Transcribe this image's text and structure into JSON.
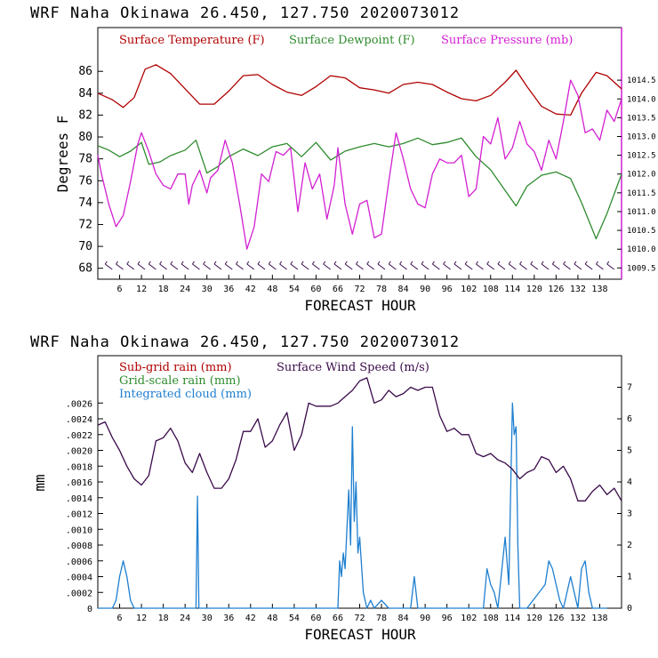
{
  "chart_data": [
    {
      "type": "line",
      "title": "WRF   Naha Okinawa   26.450, 127.750   2020073012",
      "xlabel": "FORECAST HOUR",
      "ylabel": "Degrees F",
      "xlim": [
        0,
        144
      ],
      "xticks": [
        "6",
        "12",
        "18",
        "24",
        "30",
        "36",
        "42",
        "48",
        "54",
        "60",
        "66",
        "72",
        "78",
        "84",
        "90",
        "96",
        "102",
        "108",
        "114",
        "120",
        "126",
        "132",
        "138"
      ],
      "ylim": [
        67,
        90
      ],
      "yticks": [
        "68",
        "70",
        "72",
        "74",
        "76",
        "78",
        "80",
        "82",
        "84",
        "86"
      ],
      "y2lim": [
        1009.2,
        1015.9
      ],
      "y2ticks": [
        "1009.5",
        "1010.0",
        "1010.5",
        "1011.0",
        "1011.5",
        "1012.0",
        "1012.5",
        "1013.0",
        "1013.5",
        "1014.0",
        "1014.5"
      ],
      "series": [
        {
          "name": "Surface Temperature (F)",
          "color": "#b00000",
          "axis": "left",
          "x": [
            0,
            4,
            7,
            10,
            13,
            16,
            20,
            24,
            28,
            32,
            36,
            40,
            44,
            48,
            52,
            56,
            60,
            64,
            68,
            72,
            76,
            80,
            84,
            88,
            92,
            96,
            100,
            104,
            108,
            112,
            115,
            118,
            122,
            126,
            130,
            133,
            137,
            140,
            144
          ],
          "y": [
            84.0,
            83.4,
            82.7,
            83.6,
            86.2,
            86.6,
            85.8,
            84.4,
            83.0,
            83.0,
            84.2,
            85.6,
            85.7,
            84.8,
            84.1,
            83.8,
            84.6,
            85.6,
            85.4,
            84.5,
            84.3,
            84.0,
            84.8,
            85.0,
            84.8,
            84.1,
            83.5,
            83.3,
            83.8,
            85.0,
            86.1,
            84.6,
            82.8,
            82.1,
            82.0,
            84.0,
            85.9,
            85.6,
            84.4
          ]
        },
        {
          "name": "Surface Dewpoint (F)",
          "color": "#2e8b2e",
          "axis": "left",
          "x": [
            0,
            3,
            6,
            9,
            12,
            14,
            17,
            20,
            24,
            27,
            30,
            33,
            36,
            40,
            44,
            48,
            52,
            56,
            60,
            64,
            68,
            72,
            76,
            80,
            84,
            88,
            92,
            96,
            100,
            104,
            108,
            112,
            115,
            118,
            122,
            126,
            130,
            133,
            137,
            140,
            144
          ],
          "y": [
            79.2,
            78.8,
            78.2,
            78.7,
            79.5,
            77.5,
            77.7,
            78.3,
            78.8,
            79.7,
            76.7,
            77.3,
            78.2,
            78.9,
            78.3,
            79.1,
            79.4,
            78.2,
            79.5,
            77.9,
            78.7,
            79.1,
            79.4,
            79.1,
            79.4,
            79.9,
            79.3,
            79.5,
            79.9,
            78.2,
            77.0,
            75.1,
            73.7,
            75.5,
            76.5,
            76.8,
            76.2,
            74.0,
            70.7,
            73.0,
            76.6
          ]
        },
        {
          "name": "Surface Pressure (mb)",
          "color": "#d21fd2",
          "axis": "right",
          "x": [
            0,
            1,
            3,
            5,
            7,
            9,
            11,
            12,
            14,
            16,
            18,
            20,
            22,
            24,
            25,
            26,
            28,
            30,
            31,
            33,
            35,
            37,
            39,
            41,
            43,
            45,
            47,
            49,
            51,
            53,
            55,
            57,
            59,
            61,
            63,
            65,
            66,
            68,
            70,
            72,
            74,
            76,
            78,
            80,
            82,
            84,
            86,
            88,
            90,
            92,
            94,
            96,
            98,
            100,
            102,
            104,
            106,
            108,
            110,
            112,
            114,
            116,
            118,
            120,
            122,
            124,
            126,
            128,
            130,
            132,
            134,
            136,
            138,
            140,
            142,
            144
          ],
          "y": [
            1012.5,
            1012.0,
            1011.2,
            1010.6,
            1010.9,
            1011.8,
            1012.8,
            1013.1,
            1012.6,
            1012.0,
            1011.7,
            1011.6,
            1012.0,
            1012.0,
            1011.2,
            1011.7,
            1012.1,
            1011.5,
            1011.9,
            1012.1,
            1012.9,
            1012.3,
            1011.2,
            1010.0,
            1010.6,
            1012.0,
            1011.8,
            1012.6,
            1012.5,
            1012.7,
            1011.0,
            1012.3,
            1011.6,
            1012.0,
            1010.8,
            1011.7,
            1012.7,
            1011.2,
            1010.4,
            1011.2,
            1011.3,
            1010.3,
            1010.4,
            1011.8,
            1013.1,
            1012.4,
            1011.6,
            1011.2,
            1011.1,
            1012.0,
            1012.4,
            1012.3,
            1012.3,
            1012.5,
            1011.4,
            1011.6,
            1013.0,
            1012.8,
            1013.5,
            1012.4,
            1012.7,
            1013.4,
            1012.8,
            1012.6,
            1012.1,
            1012.9,
            1012.4,
            1013.4,
            1014.5,
            1014.1,
            1013.1,
            1013.2,
            1012.9,
            1013.7,
            1013.4,
            1014.0
          ]
        }
      ],
      "wind_barbs": true
    },
    {
      "type": "line",
      "title": "WRF   Naha Okinawa   26.450, 127.750   2020073012",
      "xlabel": "FORECAST HOUR",
      "ylabel": "mm",
      "xlim": [
        0,
        144
      ],
      "xticks": [
        "6",
        "12",
        "18",
        "24",
        "30",
        "36",
        "42",
        "48",
        "54",
        "60",
        "66",
        "72",
        "78",
        "84",
        "90",
        "96",
        "102",
        "108",
        "114",
        "120",
        "126",
        "132",
        "138"
      ],
      "ylim": [
        0,
        0.0032
      ],
      "yticks": [
        "0",
        ".0002",
        ".0004",
        ".0006",
        ".0008",
        ".0010",
        ".0012",
        ".0014",
        ".0016",
        ".0018",
        ".0020",
        ".0022",
        ".0024",
        ".0026"
      ],
      "y2lim": [
        0,
        8
      ],
      "y2ticks": [
        "0",
        "1",
        "2",
        "3",
        "4",
        "5",
        "6",
        "7"
      ],
      "series": [
        {
          "name": "Sub-grid rain (mm)",
          "color": "#b00000",
          "axis": "left",
          "x": [],
          "y": []
        },
        {
          "name": "Grid-scale rain (mm)",
          "color": "#2e8b2e",
          "axis": "left",
          "x": [],
          "y": []
        },
        {
          "name": "Integrated cloud (mm)",
          "color": "#1e7fd0",
          "axis": "left",
          "x": [
            0,
            4,
            5,
            6,
            7,
            8,
            9,
            10,
            26,
            27,
            27.4,
            27.8,
            28,
            66,
            66.5,
            67,
            67.5,
            68,
            69,
            69.5,
            70,
            70.5,
            71,
            71.5,
            72,
            73,
            73.5,
            74,
            75,
            76,
            78,
            80,
            82,
            86,
            87,
            88,
            106,
            107,
            108,
            109,
            110,
            112,
            113,
            114,
            114.5,
            115,
            115.5,
            116,
            117,
            118,
            123,
            124,
            125,
            126,
            127,
            128,
            130,
            131,
            132,
            133,
            134,
            135,
            136,
            137,
            138,
            140
          ],
          "y": [
            0,
            0,
            0.0001,
            0.0004,
            0.0006,
            0.0004,
            0.0001,
            0,
            0,
            0,
            0.00142,
            0,
            0,
            0,
            0.0006,
            0.0004,
            0.0007,
            0.0005,
            0.0015,
            0.0008,
            0.0023,
            0.0011,
            0.0016,
            0.0007,
            0.0009,
            0.0002,
            0.0001,
            0,
            0.0001,
            0,
            0.0001,
            0,
            0,
            0,
            0.0004,
            0,
            0,
            0.0005,
            0.0003,
            0.0002,
            0,
            0.0009,
            0.0003,
            0.0026,
            0.0022,
            0.0023,
            0.0008,
            0,
            0,
            0,
            0.0003,
            0.0006,
            0.0005,
            0.0003,
            0.0001,
            0,
            0.0004,
            0.0002,
            0,
            0.0005,
            0.0006,
            0.0002,
            0,
            0,
            0,
            0
          ]
        },
        {
          "name": "Surface Wind Speed (m/s)",
          "color": "#3a0a4a",
          "axis": "right",
          "x": [
            0,
            2,
            4,
            6,
            8,
            10,
            12,
            14,
            16,
            18,
            20,
            22,
            24,
            26,
            28,
            30,
            32,
            34,
            36,
            38,
            40,
            42,
            44,
            46,
            48,
            50,
            52,
            54,
            56,
            58,
            60,
            62,
            64,
            66,
            68,
            70,
            72,
            74,
            76,
            78,
            80,
            82,
            84,
            86,
            88,
            90,
            92,
            94,
            96,
            98,
            100,
            102,
            104,
            106,
            108,
            110,
            112,
            114,
            116,
            118,
            120,
            122,
            124,
            126,
            128,
            130,
            132,
            134,
            136,
            138,
            140,
            142,
            144
          ],
          "y": [
            5.8,
            5.9,
            5.4,
            5.0,
            4.5,
            4.1,
            3.9,
            4.2,
            5.3,
            5.4,
            5.7,
            5.3,
            4.6,
            4.3,
            4.9,
            4.3,
            3.8,
            3.8,
            4.1,
            4.7,
            5.6,
            5.6,
            6.0,
            5.1,
            5.3,
            5.8,
            6.2,
            5.0,
            5.5,
            6.5,
            6.4,
            6.4,
            6.4,
            6.5,
            6.7,
            6.9,
            7.2,
            7.3,
            6.5,
            6.6,
            6.9,
            6.7,
            6.8,
            7.0,
            6.9,
            7.0,
            7.0,
            6.1,
            5.6,
            5.7,
            5.5,
            5.5,
            4.9,
            4.8,
            4.9,
            4.7,
            4.6,
            4.4,
            4.1,
            4.3,
            4.4,
            4.8,
            4.7,
            4.3,
            4.5,
            4.1,
            3.4,
            3.4,
            3.7,
            3.9,
            3.6,
            3.8,
            3.4
          ]
        }
      ]
    }
  ]
}
